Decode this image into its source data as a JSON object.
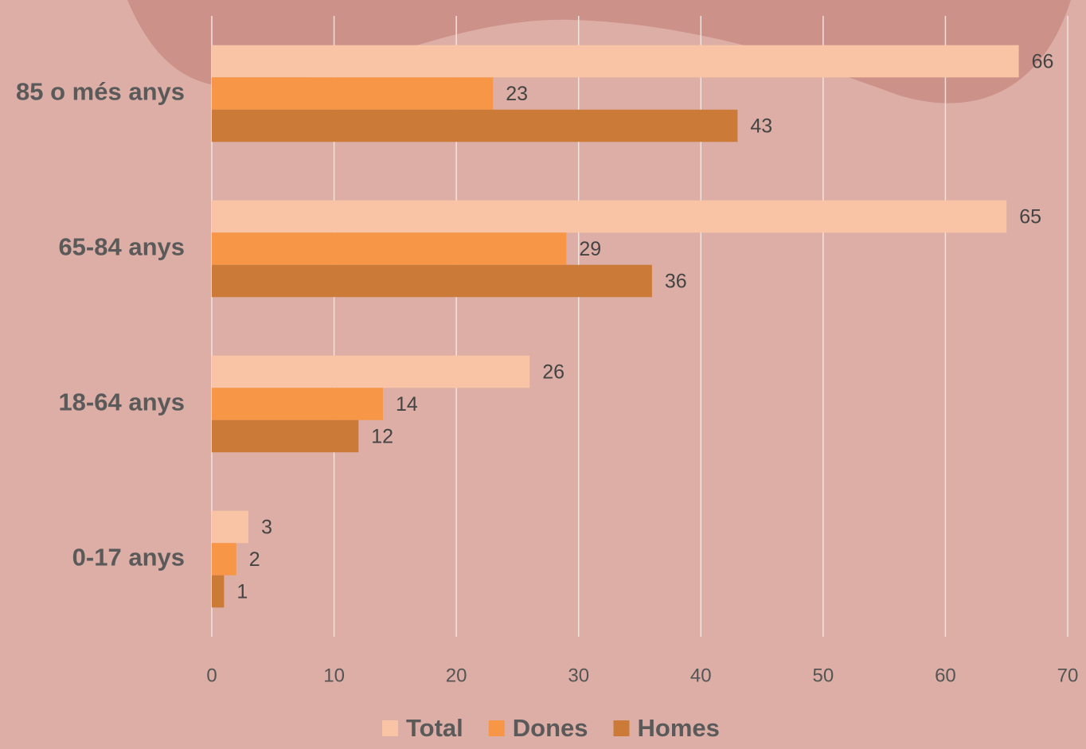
{
  "chart_data": {
    "type": "bar",
    "orientation": "horizontal",
    "categories": [
      "85 o més anys",
      "65-84 anys",
      "18-64 anys",
      "0-17 anys"
    ],
    "series": [
      {
        "name": "Total",
        "color": "#f9c3a6",
        "values": [
          66,
          65,
          26,
          3
        ]
      },
      {
        "name": "Dones",
        "color": "#f79646",
        "values": [
          23,
          29,
          14,
          2
        ]
      },
      {
        "name": "Homes",
        "color": "#cc7a37",
        "values": [
          43,
          36,
          12,
          1
        ]
      }
    ],
    "xlim": [
      0,
      70
    ],
    "xticks": [
      0,
      10,
      20,
      30,
      40,
      50,
      60,
      70
    ],
    "grid": true,
    "legend": "bottom"
  }
}
